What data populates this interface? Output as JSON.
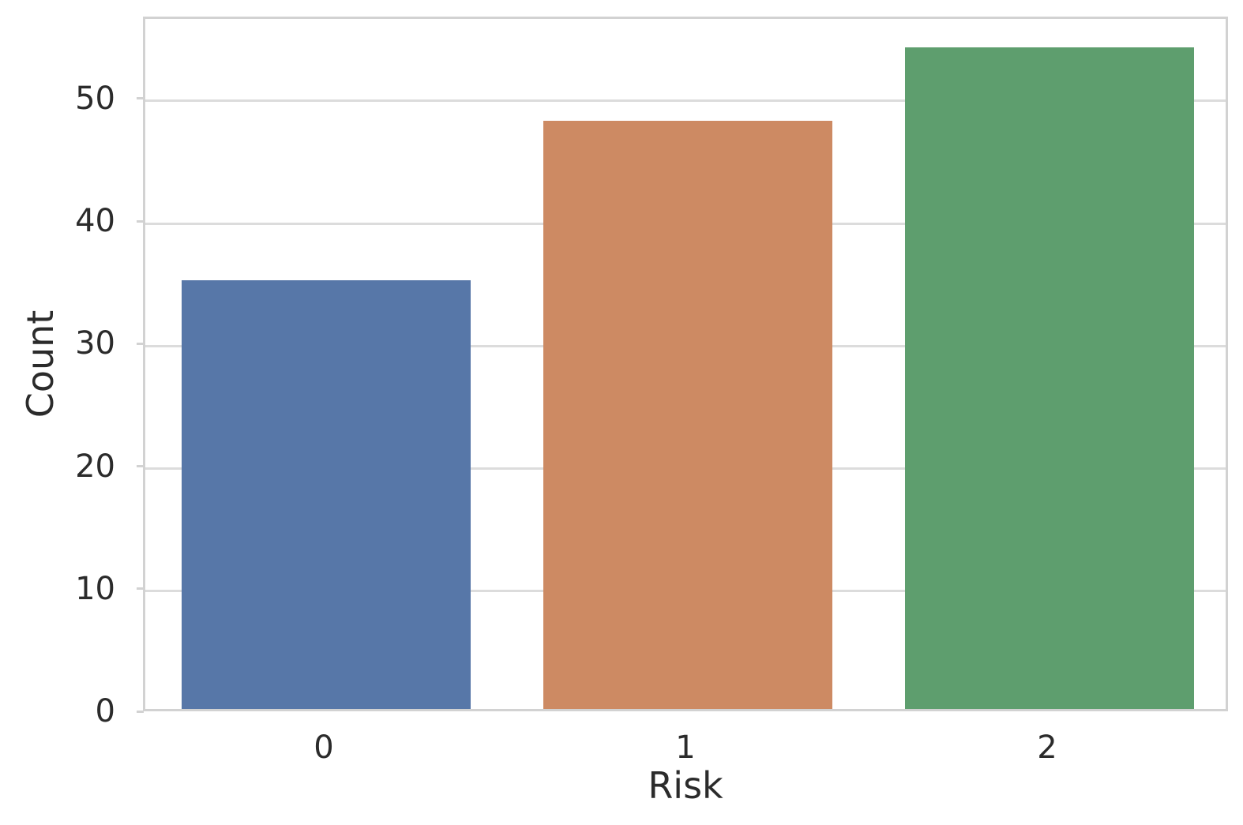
{
  "figure": {
    "background": "#ffffff",
    "text_color": "#2b2b2b"
  },
  "chart_data": {
    "type": "bar",
    "title": "",
    "xlabel": "Risk",
    "ylabel": "Count",
    "categories": [
      "0",
      "1",
      "2"
    ],
    "values": [
      35,
      48,
      54
    ],
    "bar_colors": [
      "#5777A8",
      "#CD8A63",
      "#5E9E6E"
    ],
    "yticks": [
      0,
      10,
      20,
      30,
      40,
      50
    ],
    "ylim": [
      0,
      56.7
    ],
    "bar_width_fraction": 0.8,
    "grid": true,
    "grid_axis": "y",
    "grid_color": "#dcdcdc",
    "spine_color": "#d2d2d2",
    "plot_background": "#ffffff",
    "legend": "none"
  }
}
